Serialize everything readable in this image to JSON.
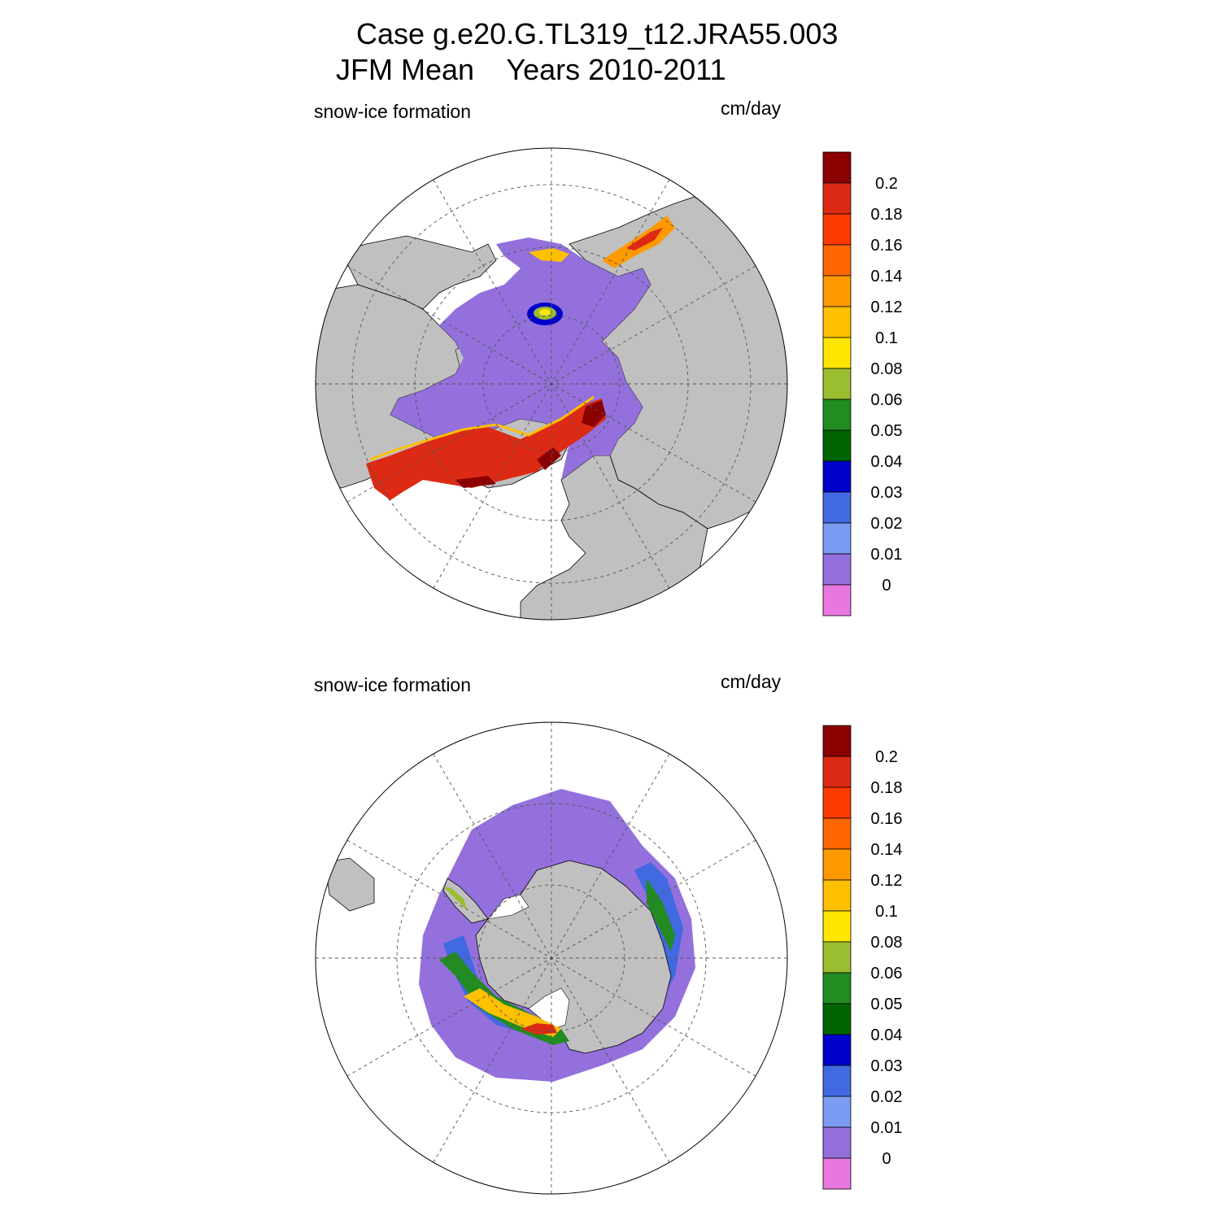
{
  "title": {
    "line1": "Case g.e20.G.TL319_t12.JRA55.003",
    "line2": "JFM Mean    Years 2010-2011"
  },
  "colors": {
    "land": "#c0c0c0",
    "ocean": "#ffffff",
    "coast": "#000000"
  },
  "chart_data": [
    {
      "type": "heatmap",
      "hemisphere": "north",
      "variable": "snow-ice formation",
      "units": "cm/day",
      "grid": true,
      "legend_placement": "right",
      "colorbar": {
        "levels": [
          "0.2",
          "0.18",
          "0.16",
          "0.14",
          "0.12",
          "0.1",
          "0.08",
          "0.06",
          "0.05",
          "0.04",
          "0.03",
          "0.02",
          "0.01",
          "0"
        ],
        "colors": [
          "#8b0000",
          "#dc2a14",
          "#ff3a00",
          "#ff6600",
          "#ff9900",
          "#ffc000",
          "#ffe600",
          "#9bbe30",
          "#228b22",
          "#006400",
          "#0000cd",
          "#4169e1",
          "#7b9cf2",
          "#9370db",
          "#e878e0"
        ]
      }
    },
    {
      "type": "heatmap",
      "hemisphere": "south",
      "variable": "snow-ice formation",
      "units": "cm/day",
      "grid": true,
      "legend_placement": "right",
      "colorbar": {
        "levels": [
          "0.2",
          "0.18",
          "0.16",
          "0.14",
          "0.12",
          "0.1",
          "0.08",
          "0.06",
          "0.05",
          "0.04",
          "0.03",
          "0.02",
          "0.01",
          "0"
        ],
        "colors": [
          "#8b0000",
          "#dc2a14",
          "#ff3a00",
          "#ff6600",
          "#ff9900",
          "#ffc000",
          "#ffe600",
          "#9bbe30",
          "#228b22",
          "#006400",
          "#0000cd",
          "#4169e1",
          "#7b9cf2",
          "#9370db",
          "#e878e0"
        ]
      }
    }
  ]
}
